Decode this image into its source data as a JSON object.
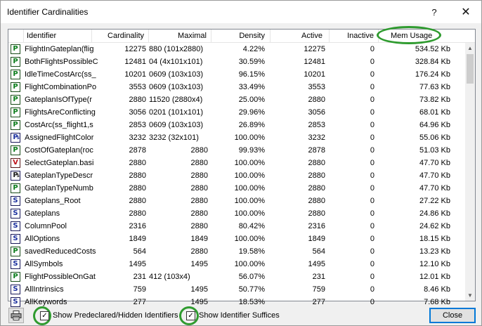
{
  "window": {
    "title": "Identifier Cardinalities",
    "help_glyph": "?",
    "close_glyph": "✕"
  },
  "columns": [
    {
      "key": "identifier",
      "label": "Identifier"
    },
    {
      "key": "cardinality",
      "label": "Cardinality"
    },
    {
      "key": "maximal",
      "label": "Maximal"
    },
    {
      "key": "density",
      "label": "Density"
    },
    {
      "key": "active",
      "label": "Active"
    },
    {
      "key": "inactive",
      "label": "Inactive"
    },
    {
      "key": "mem_usage",
      "label": "Mem Usage"
    }
  ],
  "rows": [
    {
      "type": "P",
      "color": "#0a7d1a",
      "identifier": "FlightInGateplan(flig",
      "cardinality": "12275",
      "maximal": "880 (101x2880)",
      "density": "4.22%",
      "active": "12275",
      "inactive": "0",
      "mem_usage": "534.52 Kb"
    },
    {
      "type": "P",
      "color": "#0a7d1a",
      "identifier": "BothFlightsPossibleC",
      "cardinality": "12481",
      "maximal": "04 (4x101x101)",
      "density": "30.59%",
      "active": "12481",
      "inactive": "0",
      "mem_usage": "328.84 Kb"
    },
    {
      "type": "P",
      "color": "#0a7d1a",
      "identifier": "IdleTimeCostArc(ss_",
      "cardinality": "10201",
      "maximal": "0609 (103x103)",
      "density": "96.15%",
      "active": "10201",
      "inactive": "0",
      "mem_usage": "176.24 Kb"
    },
    {
      "type": "P",
      "color": "#0a7d1a",
      "identifier": "FlightCombinationPo",
      "cardinality": "3553",
      "maximal": "0609 (103x103)",
      "density": "33.49%",
      "active": "3553",
      "inactive": "0",
      "mem_usage": "77.63 Kb"
    },
    {
      "type": "P",
      "color": "#0a7d1a",
      "identifier": "GateplanIsOfType(r",
      "cardinality": "2880",
      "maximal": "11520 (2880x4)",
      "density": "25.00%",
      "active": "2880",
      "inactive": "0",
      "mem_usage": "73.82 Kb"
    },
    {
      "type": "P",
      "color": "#0a7d1a",
      "identifier": "FlightsAreConflicting",
      "cardinality": "3056",
      "maximal": "0201 (101x101)",
      "density": "29.96%",
      "active": "3056",
      "inactive": "0",
      "mem_usage": "68.01 Kb"
    },
    {
      "type": "P",
      "color": "#0a7d1a",
      "identifier": "CostArc(ss_flight1,s",
      "cardinality": "2853",
      "maximal": "0609 (103x103)",
      "density": "26.89%",
      "active": "2853",
      "inactive": "0",
      "mem_usage": "64.96 Kb"
    },
    {
      "type": "PS",
      "color": "#1b2f9e",
      "identifier": "AssignedFlightColor",
      "cardinality": "3232",
      "maximal": "3232 (32x101)",
      "density": "100.00%",
      "active": "3232",
      "inactive": "0",
      "mem_usage": "55.06 Kb"
    },
    {
      "type": "P",
      "color": "#0a7d1a",
      "identifier": "CostOfGateplan(roc",
      "cardinality": "2878",
      "maximal": "2880",
      "density": "99.93%",
      "active": "2878",
      "inactive": "0",
      "mem_usage": "51.03 Kb"
    },
    {
      "type": "V",
      "color": "#c0141c",
      "identifier": "SelectGateplan.basi",
      "cardinality": "2880",
      "maximal": "2880",
      "density": "100.00%",
      "active": "2880",
      "inactive": "0",
      "mem_usage": "47.70 Kb"
    },
    {
      "type": "PS",
      "color": "#1a1a1a",
      "identifier": "GateplanTypeDescr",
      "cardinality": "2880",
      "maximal": "2880",
      "density": "100.00%",
      "active": "2880",
      "inactive": "0",
      "mem_usage": "47.70 Kb"
    },
    {
      "type": "P",
      "color": "#0a7d1a",
      "identifier": "GateplanTypeNumb",
      "cardinality": "2880",
      "maximal": "2880",
      "density": "100.00%",
      "active": "2880",
      "inactive": "0",
      "mem_usage": "47.70 Kb"
    },
    {
      "type": "S",
      "color": "#1b2f9e",
      "identifier": "Gateplans_Root",
      "cardinality": "2880",
      "maximal": "2880",
      "density": "100.00%",
      "active": "2880",
      "inactive": "0",
      "mem_usage": "27.22 Kb"
    },
    {
      "type": "S",
      "color": "#1b2f9e",
      "identifier": "Gateplans",
      "cardinality": "2880",
      "maximal": "2880",
      "density": "100.00%",
      "active": "2880",
      "inactive": "0",
      "mem_usage": "24.86 Kb"
    },
    {
      "type": "S",
      "color": "#1b2f9e",
      "identifier": "ColumnPool",
      "cardinality": "2316",
      "maximal": "2880",
      "density": "80.42%",
      "active": "2316",
      "inactive": "0",
      "mem_usage": "24.62 Kb"
    },
    {
      "type": "S",
      "color": "#1b2f9e",
      "identifier": "AllOptions",
      "cardinality": "1849",
      "maximal": "1849",
      "density": "100.00%",
      "active": "1849",
      "inactive": "0",
      "mem_usage": "18.15 Kb"
    },
    {
      "type": "P",
      "color": "#0a7d1a",
      "identifier": "savedReducedCosts",
      "cardinality": "564",
      "maximal": "2880",
      "density": "19.58%",
      "active": "564",
      "inactive": "0",
      "mem_usage": "13.23 Kb"
    },
    {
      "type": "S",
      "color": "#1b2f9e",
      "identifier": "AllSymbols",
      "cardinality": "1495",
      "maximal": "1495",
      "density": "100.00%",
      "active": "1495",
      "inactive": "0",
      "mem_usage": "12.10 Kb"
    },
    {
      "type": "P",
      "color": "#0a7d1a",
      "identifier": "FlightPossibleOnGat",
      "cardinality": "231",
      "maximal": "412 (103x4)",
      "density": "56.07%",
      "active": "231",
      "inactive": "0",
      "mem_usage": "12.01 Kb"
    },
    {
      "type": "S",
      "color": "#1b2f9e",
      "identifier": "AllIntrinsics",
      "cardinality": "759",
      "maximal": "1495",
      "density": "50.77%",
      "active": "759",
      "inactive": "0",
      "mem_usage": "8.46 Kb"
    },
    {
      "type": "S",
      "color": "#1b2f9e",
      "identifier": "AllKeywords",
      "cardinality": "277",
      "maximal": "1495",
      "density": "18.53%",
      "active": "277",
      "inactive": "0",
      "mem_usage": "7.68 Kb"
    }
  ],
  "options": {
    "show_predeclared_label": "Show Predeclared/Hidden Identifiers",
    "show_suffices_label": "Show Identifier Suffices",
    "show_predeclared_checked": true,
    "show_suffices_checked": true
  },
  "buttons": {
    "close_label": "Close"
  },
  "colors": {
    "callout": "#2f9b2f",
    "accent": "#0078d7"
  }
}
